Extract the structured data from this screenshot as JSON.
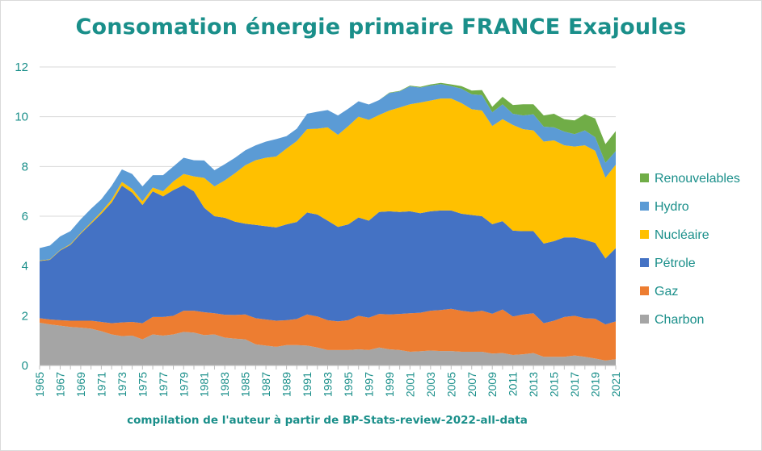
{
  "chart_data": {
    "type": "area",
    "title": "Consomation énergie primaire FRANCE Exajoules",
    "subtitle": "compilation de l'auteur à partir de BP-Stats-review-2022-all-data",
    "ylim": [
      0,
      12
    ],
    "yticks": [
      0,
      2,
      4,
      6,
      8,
      10,
      12
    ],
    "x": [
      1965,
      1966,
      1967,
      1968,
      1969,
      1970,
      1971,
      1972,
      1973,
      1974,
      1975,
      1976,
      1977,
      1978,
      1979,
      1980,
      1981,
      1982,
      1983,
      1984,
      1985,
      1986,
      1987,
      1988,
      1989,
      1990,
      1991,
      1992,
      1993,
      1994,
      1995,
      1996,
      1997,
      1998,
      1999,
      2000,
      2001,
      2002,
      2003,
      2004,
      2005,
      2006,
      2007,
      2008,
      2009,
      2010,
      2011,
      2012,
      2013,
      2014,
      2015,
      2016,
      2017,
      2018,
      2019,
      2020,
      2021
    ],
    "xtick_labels": [
      "1965",
      "1967",
      "1969",
      "1971",
      "1973",
      "1975",
      "1977",
      "1979",
      "1981",
      "1983",
      "1985",
      "1987",
      "1989",
      "1991",
      "1993",
      "1995",
      "1997",
      "1999",
      "2001",
      "2003",
      "2005",
      "2007",
      "2009",
      "2011",
      "2013",
      "2015",
      "2017",
      "2019",
      "2021"
    ],
    "stacked": true,
    "legend_position": "right",
    "series": [
      {
        "name": "Charbon",
        "color": "#a5a5a5",
        "values": [
          1.72,
          1.65,
          1.6,
          1.55,
          1.52,
          1.48,
          1.38,
          1.25,
          1.18,
          1.2,
          1.05,
          1.25,
          1.2,
          1.25,
          1.35,
          1.32,
          1.22,
          1.25,
          1.12,
          1.08,
          1.05,
          0.85,
          0.8,
          0.75,
          0.82,
          0.82,
          0.8,
          0.72,
          0.62,
          0.62,
          0.62,
          0.65,
          0.62,
          0.72,
          0.65,
          0.62,
          0.55,
          0.57,
          0.6,
          0.58,
          0.58,
          0.55,
          0.55,
          0.55,
          0.48,
          0.5,
          0.42,
          0.45,
          0.5,
          0.35,
          0.35,
          0.35,
          0.4,
          0.35,
          0.28,
          0.2,
          0.25
        ]
      },
      {
        "name": "Gaz",
        "color": "#ed7d31",
        "values": [
          0.18,
          0.2,
          0.22,
          0.25,
          0.28,
          0.32,
          0.37,
          0.45,
          0.55,
          0.55,
          0.65,
          0.7,
          0.75,
          0.75,
          0.85,
          0.88,
          0.92,
          0.85,
          0.92,
          0.95,
          1.0,
          1.05,
          1.05,
          1.05,
          1.0,
          1.05,
          1.25,
          1.25,
          1.2,
          1.15,
          1.2,
          1.35,
          1.3,
          1.35,
          1.4,
          1.45,
          1.55,
          1.55,
          1.6,
          1.65,
          1.7,
          1.65,
          1.6,
          1.65,
          1.6,
          1.75,
          1.55,
          1.6,
          1.6,
          1.35,
          1.45,
          1.6,
          1.6,
          1.55,
          1.6,
          1.45,
          1.52
        ]
      },
      {
        "name": "Pétrole",
        "color": "#4472c4",
        "values": [
          2.3,
          2.4,
          2.8,
          3.05,
          3.5,
          3.9,
          4.35,
          4.85,
          5.5,
          5.2,
          4.75,
          5.05,
          4.85,
          5.05,
          5.05,
          4.8,
          4.2,
          3.9,
          3.9,
          3.75,
          3.65,
          3.75,
          3.75,
          3.75,
          3.85,
          3.9,
          4.1,
          4.1,
          4.0,
          3.8,
          3.85,
          3.95,
          3.9,
          4.1,
          4.15,
          4.1,
          4.1,
          4.0,
          4.0,
          4.0,
          3.95,
          3.9,
          3.9,
          3.8,
          3.6,
          3.55,
          3.45,
          3.35,
          3.3,
          3.2,
          3.2,
          3.2,
          3.15,
          3.15,
          3.05,
          2.65,
          2.95
        ]
      },
      {
        "name": "Nucléaire",
        "color": "#ffc000",
        "values": [
          0.02,
          0.02,
          0.02,
          0.03,
          0.03,
          0.05,
          0.08,
          0.12,
          0.15,
          0.15,
          0.15,
          0.15,
          0.2,
          0.35,
          0.45,
          0.6,
          1.2,
          1.2,
          1.5,
          1.95,
          2.35,
          2.6,
          2.75,
          2.85,
          3.05,
          3.25,
          3.35,
          3.45,
          3.75,
          3.7,
          3.95,
          4.05,
          4.05,
          3.9,
          4.05,
          4.2,
          4.3,
          4.45,
          4.45,
          4.5,
          4.5,
          4.45,
          4.25,
          4.25,
          3.95,
          4.1,
          4.25,
          4.1,
          4.05,
          4.1,
          4.05,
          3.7,
          3.65,
          3.8,
          3.7,
          3.25,
          3.35
        ]
      },
      {
        "name": "Hydro",
        "color": "#5b9bd5",
        "values": [
          0.5,
          0.55,
          0.55,
          0.52,
          0.55,
          0.55,
          0.5,
          0.55,
          0.5,
          0.6,
          0.6,
          0.5,
          0.65,
          0.6,
          0.65,
          0.65,
          0.7,
          0.65,
          0.65,
          0.62,
          0.6,
          0.6,
          0.65,
          0.7,
          0.5,
          0.5,
          0.62,
          0.68,
          0.7,
          0.78,
          0.7,
          0.62,
          0.62,
          0.6,
          0.7,
          0.65,
          0.72,
          0.6,
          0.6,
          0.58,
          0.5,
          0.58,
          0.6,
          0.62,
          0.55,
          0.6,
          0.45,
          0.55,
          0.65,
          0.6,
          0.52,
          0.55,
          0.5,
          0.6,
          0.55,
          0.6,
          0.55
        ]
      },
      {
        "name": "Renouvelables",
        "color": "#70ad47",
        "values": [
          0,
          0,
          0,
          0,
          0,
          0,
          0,
          0,
          0,
          0,
          0,
          0,
          0,
          0,
          0,
          0,
          0,
          0,
          0,
          0,
          0,
          0,
          0,
          0,
          0,
          0,
          0,
          0,
          0,
          0,
          0,
          0,
          0,
          0,
          0.02,
          0.02,
          0.03,
          0.03,
          0.05,
          0.05,
          0.07,
          0.1,
          0.15,
          0.2,
          0.22,
          0.3,
          0.35,
          0.45,
          0.4,
          0.45,
          0.55,
          0.5,
          0.55,
          0.65,
          0.75,
          0.75,
          0.8
        ]
      }
    ]
  }
}
